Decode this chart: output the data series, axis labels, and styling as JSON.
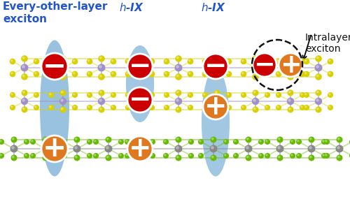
{
  "bg_color": "#ffffff",
  "blue_oval_color": "#5599cc",
  "blue_oval_alpha": 0.55,
  "minus_color": "#cc0000",
  "plus_color": "#e07820",
  "text_blue": "#2255cc",
  "text_black": "#111111",
  "layer_top_metal": "#a090c8",
  "layer_top_chalc": "#d8d000",
  "layer_mid_metal": "#a090c8",
  "layer_mid_chalc": "#d8d000",
  "layer_bot_metal": "#888888",
  "layer_bot_chalc": "#66bb00",
  "bond_color_top": "#c8b840",
  "bond_color_mid": "#c8b840",
  "bond_color_bot": "#88aa44",
  "label_every_other": "Every-other-layer\nexciton",
  "label_hIX_1": "$h$-IX",
  "label_hIX_2": "$h$-IX",
  "label_intralayer": "Intralayer\nexciton",
  "label_fontsize": 11,
  "label_intralayer_fontsize": 10
}
